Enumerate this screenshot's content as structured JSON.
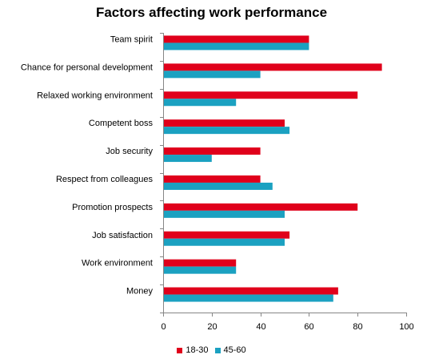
{
  "chart_data": {
    "type": "bar",
    "orientation": "horizontal",
    "title": "Factors affecting work performance",
    "categories": [
      "Team spirit",
      "Chance for personal development",
      "Relaxed working environment",
      "Competent boss",
      "Job security",
      "Respect from colleagues",
      "Promotion prospects",
      "Job satisfaction",
      "Work environment",
      "Money"
    ],
    "series": [
      {
        "name": "18-30",
        "color": "#e0001b",
        "values": [
          60,
          90,
          80,
          50,
          40,
          40,
          80,
          52,
          30,
          72
        ]
      },
      {
        "name": "45-60",
        "color": "#1ba1c1",
        "values": [
          60,
          40,
          30,
          52,
          20,
          45,
          50,
          50,
          30,
          70
        ]
      }
    ],
    "xlim": [
      0,
      100
    ],
    "xticks": [
      "0",
      "20",
      "40",
      "60",
      "80",
      "100"
    ],
    "grid": false,
    "legend_position": "bottom"
  }
}
